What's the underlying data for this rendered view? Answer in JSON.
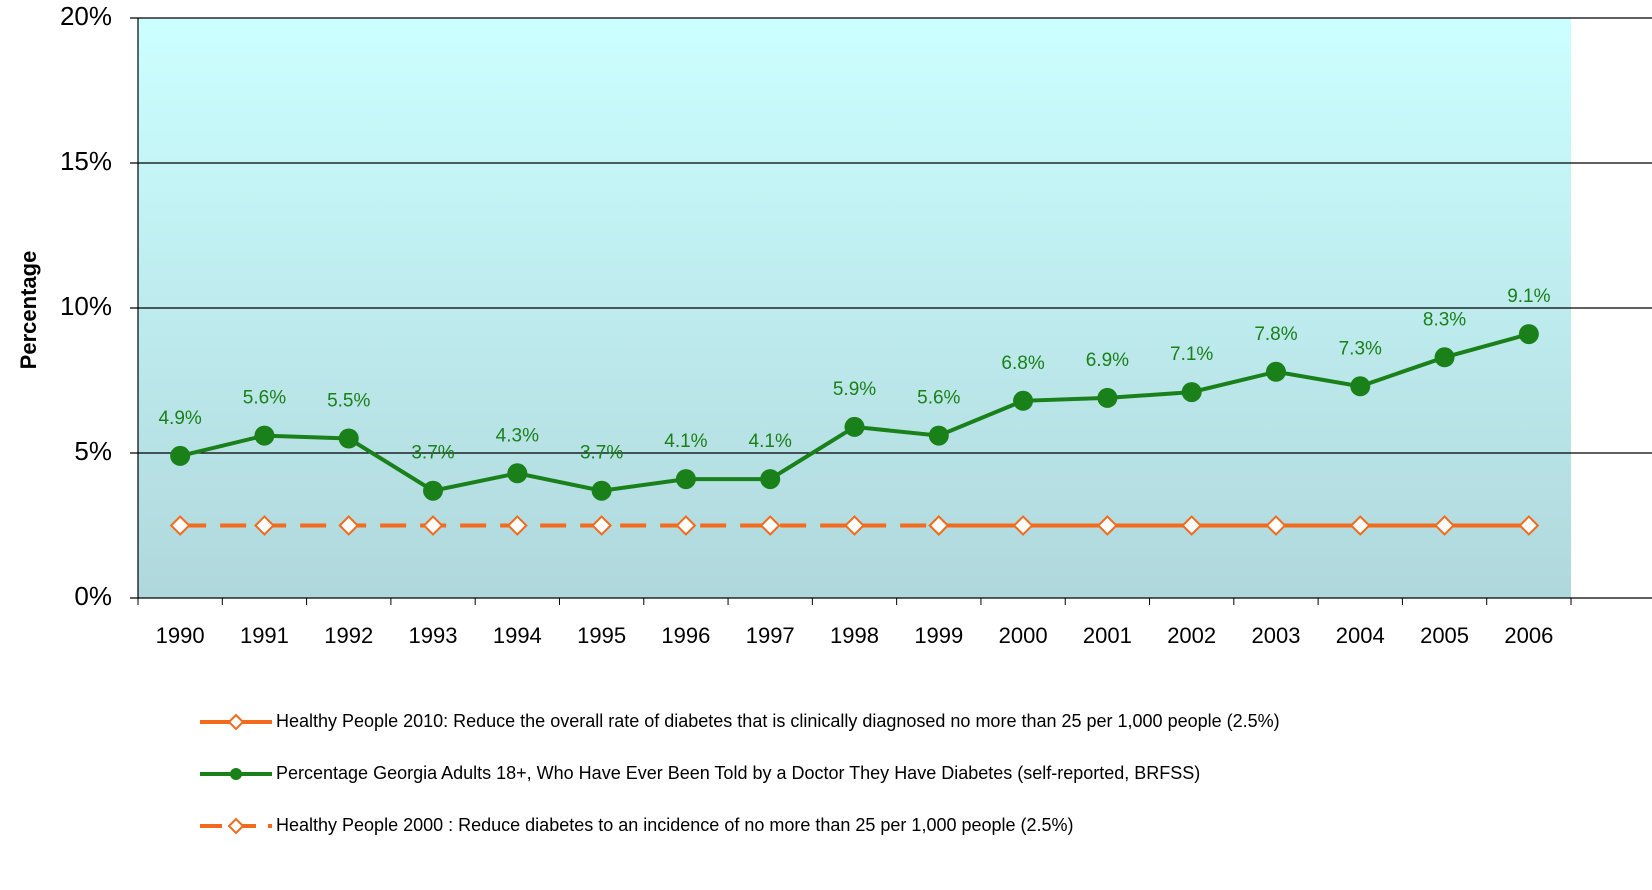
{
  "chart_data": {
    "type": "line",
    "y_label": "Percentage",
    "categories": [
      "1990",
      "1991",
      "1992",
      "1993",
      "1994",
      "1995",
      "1996",
      "1997",
      "1998",
      "1999",
      "2000",
      "2001",
      "2002",
      "2003",
      "2004",
      "2005",
      "2006"
    ],
    "series": [
      {
        "name": "Healthy People 2010: Reduce the overall rate of diabetes that is clinically diagnosed no more than 25 per 1,000 people (2.5%)",
        "color": "#f26b1d",
        "marker": "diamond",
        "dash": false,
        "values": [
          null,
          null,
          null,
          null,
          null,
          null,
          null,
          null,
          null,
          2.5,
          2.5,
          2.5,
          2.5,
          2.5,
          2.5,
          2.5,
          2.5
        ]
      },
      {
        "name": "Percentage Georgia Adults 18+, Who Have Ever Been Told by a Doctor They Have Diabetes (self-reported, BRFSS)",
        "color": "#1a801a",
        "marker": "circle",
        "dash": false,
        "values": [
          4.9,
          5.6,
          5.5,
          3.7,
          4.3,
          3.7,
          4.1,
          4.1,
          5.9,
          5.6,
          6.8,
          6.9,
          7.1,
          7.8,
          7.3,
          8.3,
          9.1
        ],
        "value_labels": [
          "4.9%",
          "5.6%",
          "5.5%",
          "3.7%",
          "4.3%",
          "3.7%",
          "4.1%",
          "4.1%",
          "5.9%",
          "5.6%",
          "6.8%",
          "6.9%",
          "7.1%",
          "7.8%",
          "7.3%",
          "8.3%",
          "9.1%"
        ]
      },
      {
        "name": "Healthy People 2000 : Reduce diabetes to an incidence of no more than 25 per 1,000 people (2.5%)",
        "color": "#f26b1d",
        "marker": "diamond",
        "dash": true,
        "values": [
          2.5,
          2.5,
          2.5,
          2.5,
          2.5,
          2.5,
          2.5,
          2.5,
          2.5,
          2.5,
          null,
          null,
          null,
          null,
          null,
          null,
          null
        ]
      }
    ],
    "ylim": [
      0,
      20
    ],
    "yticks": [
      {
        "value": 0,
        "label": "0%"
      },
      {
        "value": 5,
        "label": "5%"
      },
      {
        "value": 10,
        "label": "10%"
      },
      {
        "value": 15,
        "label": "15%"
      },
      {
        "value": 20,
        "label": "20%"
      }
    ],
    "grid": true
  }
}
